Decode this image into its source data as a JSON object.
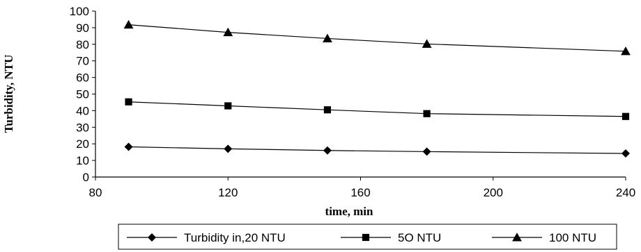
{
  "chart_data": {
    "type": "line",
    "title": "",
    "xlabel": "time, min",
    "ylabel": "Turbidity, NTU",
    "xlim": [
      80,
      240
    ],
    "ylim": [
      0,
      100
    ],
    "x_ticks": [
      "80",
      "120",
      "160",
      "200",
      "240"
    ],
    "y_ticks": [
      "0",
      "10",
      "20",
      "30",
      "40",
      "50",
      "60",
      "70",
      "80",
      "90",
      "100"
    ],
    "grid": false,
    "legend_position": "bottom",
    "x": [
      90,
      120,
      150,
      180,
      240
    ],
    "series": [
      {
        "name": "Turbidity in,20 NTU",
        "marker": "diamond",
        "values": [
          18.2,
          17.0,
          16.0,
          15.3,
          14.2
        ]
      },
      {
        "name": "5O NTU",
        "marker": "square",
        "values": [
          45.3,
          42.9,
          40.5,
          38.2,
          36.5
        ]
      },
      {
        "name": "100 NTU",
        "marker": "triangle",
        "values": [
          91.8,
          87.2,
          83.5,
          80.2,
          75.8
        ]
      }
    ],
    "line_color": "#000000"
  }
}
